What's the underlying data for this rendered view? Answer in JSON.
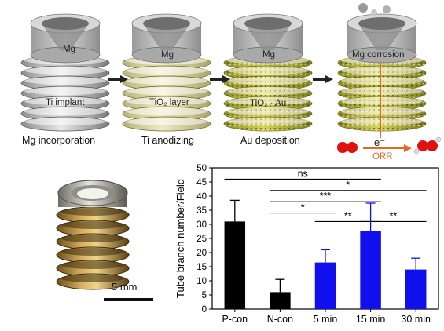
{
  "schematic": {
    "steps": [
      {
        "caption": "Mg incorporation",
        "labels": [
          "Mg",
          "Ti implant"
        ]
      },
      {
        "caption": "Ti anodizing",
        "labels": [
          "Mg",
          "TiO₂ layer"
        ]
      },
      {
        "caption": "Au deposition",
        "labels": [
          "Mg",
          "TiO₂ · Au"
        ]
      },
      {
        "caption": "",
        "labels": [
          "Mg corrosion",
          "e⁻",
          "ORR"
        ]
      }
    ]
  },
  "photo": {
    "scale_label": "5 mm"
  },
  "chart_data": {
    "type": "bar",
    "ylabel": "Tube branch number/Field",
    "ylim": [
      0,
      50
    ],
    "yticks": [
      0,
      5,
      10,
      15,
      20,
      25,
      30,
      35,
      40,
      45,
      50
    ],
    "categories": [
      "P-con",
      "N-con",
      "5 min",
      "15 min",
      "30 min"
    ],
    "values": [
      31,
      6,
      16.5,
      27.5,
      14
    ],
    "errors": [
      7.5,
      4.5,
      4.5,
      10,
      4
    ],
    "bar_colors": [
      "#000000",
      "#000000",
      "#1010ee",
      "#1010ee",
      "#1010ee"
    ],
    "significance": [
      {
        "from": "P-con",
        "to": "15 min",
        "label": "ns"
      },
      {
        "from": "N-con",
        "to": "30 min",
        "label": "*"
      },
      {
        "from": "N-con",
        "to": "15 min",
        "label": "***"
      },
      {
        "from": "N-con",
        "to": "5 min",
        "label": "*"
      },
      {
        "from": "5 min",
        "to": "15 min",
        "label": "**"
      },
      {
        "from": "15 min",
        "to": "30 min",
        "label": "**"
      }
    ],
    "grid": false
  }
}
